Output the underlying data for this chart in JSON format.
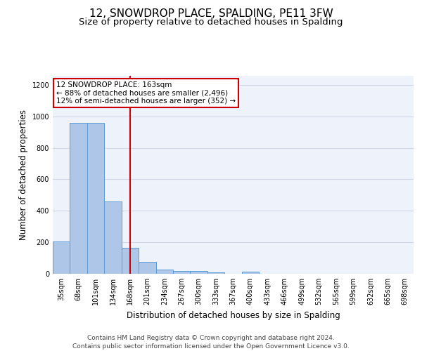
{
  "title": "12, SNOWDROP PLACE, SPALDING, PE11 3FW",
  "subtitle": "Size of property relative to detached houses in Spalding",
  "xlabel": "Distribution of detached houses by size in Spalding",
  "ylabel": "Number of detached properties",
  "footer_line1": "Contains HM Land Registry data © Crown copyright and database right 2024.",
  "footer_line2": "Contains public sector information licensed under the Open Government Licence v3.0.",
  "bar_labels": [
    "35sqm",
    "68sqm",
    "101sqm",
    "134sqm",
    "168sqm",
    "201sqm",
    "234sqm",
    "267sqm",
    "300sqm",
    "333sqm",
    "367sqm",
    "400sqm",
    "433sqm",
    "466sqm",
    "499sqm",
    "532sqm",
    "565sqm",
    "599sqm",
    "632sqm",
    "665sqm",
    "698sqm"
  ],
  "bar_values": [
    205,
    960,
    960,
    460,
    163,
    75,
    25,
    20,
    17,
    10,
    0,
    13,
    0,
    0,
    0,
    0,
    0,
    0,
    0,
    0,
    0
  ],
  "ylim": [
    0,
    1260
  ],
  "yticks": [
    0,
    200,
    400,
    600,
    800,
    1000,
    1200
  ],
  "bar_color": "#aec6e8",
  "bar_edge_color": "#5b9bd5",
  "grid_color": "#d0d8e8",
  "background_color": "#eef2fb",
  "vline_x": 4.0,
  "vline_color": "#cc0000",
  "annotation_text": "12 SNOWDROP PLACE: 163sqm\n← 88% of detached houses are smaller (2,496)\n12% of semi-detached houses are larger (352) →",
  "annotation_box_color": "#ffffff",
  "annotation_box_edge": "#cc0000",
  "title_fontsize": 11,
  "subtitle_fontsize": 9.5,
  "axis_label_fontsize": 8.5,
  "tick_fontsize": 7,
  "footer_fontsize": 6.5,
  "annotation_fontsize": 7.5
}
